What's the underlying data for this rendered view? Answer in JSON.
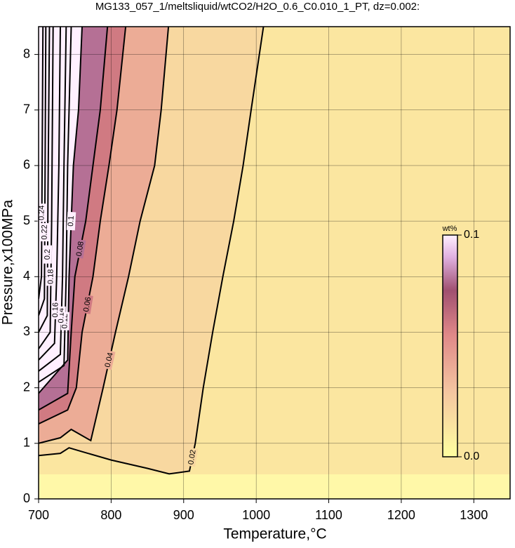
{
  "chart_data": {
    "type": "contour",
    "title": "MG133_057_1/meltsliquid/wtCO2/H2O_0.6_C0.010_1_PT, dz=0.002:",
    "xlabel": "Temperature,°C",
    "ylabel": "Pressure,x100MPa",
    "xlim": [
      700,
      1350
    ],
    "ylim": [
      0,
      8.5
    ],
    "xticks": [
      700,
      800,
      900,
      1000,
      1100,
      1200,
      1300
    ],
    "yticks": [
      0,
      1,
      2,
      3,
      4,
      5,
      6,
      7,
      8
    ],
    "grid": true,
    "contours": [
      {
        "level": 0.02,
        "x": [
          700,
          730,
          742,
          760,
          800,
          850,
          880,
          908,
          916,
          927,
          940,
          954,
          969,
          982,
          993,
          1010
        ],
        "y": [
          0.78,
          0.82,
          0.92,
          0.85,
          0.7,
          0.55,
          0.45,
          0.5,
          1,
          2,
          3,
          4,
          5,
          6,
          7,
          8.5
        ]
      },
      {
        "level": 0.04,
        "x": [
          700,
          730,
          745,
          772,
          789,
          806,
          824,
          840,
          860,
          869,
          879
        ],
        "y": [
          1.0,
          1.1,
          1.25,
          1.05,
          2,
          3,
          4,
          5,
          6,
          7,
          8.5
        ]
      },
      {
        "level": 0.06,
        "x": [
          700,
          740,
          752,
          760,
          775,
          785,
          797,
          808,
          820
        ],
        "y": [
          1.35,
          1.6,
          2,
          3,
          4,
          5,
          6,
          7,
          8.5
        ]
      },
      {
        "level": 0.08,
        "x": [
          700,
          740,
          745,
          750,
          765,
          775,
          785,
          795
        ],
        "y": [
          1.6,
          1.9,
          3,
          4,
          5,
          6,
          7,
          8.5
        ]
      },
      {
        "level": 0.1,
        "x": [
          700,
          740,
          742,
          748,
          755,
          760
        ],
        "y": [
          1.9,
          2.5,
          4,
          6,
          7,
          8.5
        ]
      },
      {
        "level": 0.12,
        "x": [
          700,
          735,
          738,
          740,
          745
        ],
        "y": [
          2.1,
          2.4,
          4,
          6,
          8.5
        ]
      },
      {
        "level": 0.14,
        "x": [
          700,
          730,
          733,
          735,
          738
        ],
        "y": [
          2.3,
          2.6,
          4,
          6,
          8.5
        ]
      },
      {
        "level": 0.16,
        "x": [
          700,
          722,
          725,
          728,
          730
        ],
        "y": [
          2.5,
          2.8,
          4,
          6,
          8.5
        ]
      },
      {
        "level": 0.18,
        "x": [
          700,
          716,
          718,
          720
        ],
        "y": [
          2.7,
          3,
          5,
          8.5
        ]
      },
      {
        "level": 0.2,
        "x": [
          700,
          712,
          713,
          715
        ],
        "y": [
          3,
          3.3,
          5.5,
          8.5
        ]
      },
      {
        "level": 0.22,
        "x": [
          700,
          708,
          709,
          710
        ],
        "y": [
          3.3,
          3.6,
          6,
          8.5
        ]
      },
      {
        "level": 0.24,
        "x": [
          700,
          704,
          705,
          706
        ],
        "y": [
          3.6,
          4,
          6.3,
          8.5
        ]
      }
    ],
    "colorbar": {
      "title": "wt%",
      "lim": [
        0,
        0.1
      ],
      "ticks": [
        {
          "value": 0,
          "label": "0.0"
        },
        0.1
      ]
    }
  }
}
